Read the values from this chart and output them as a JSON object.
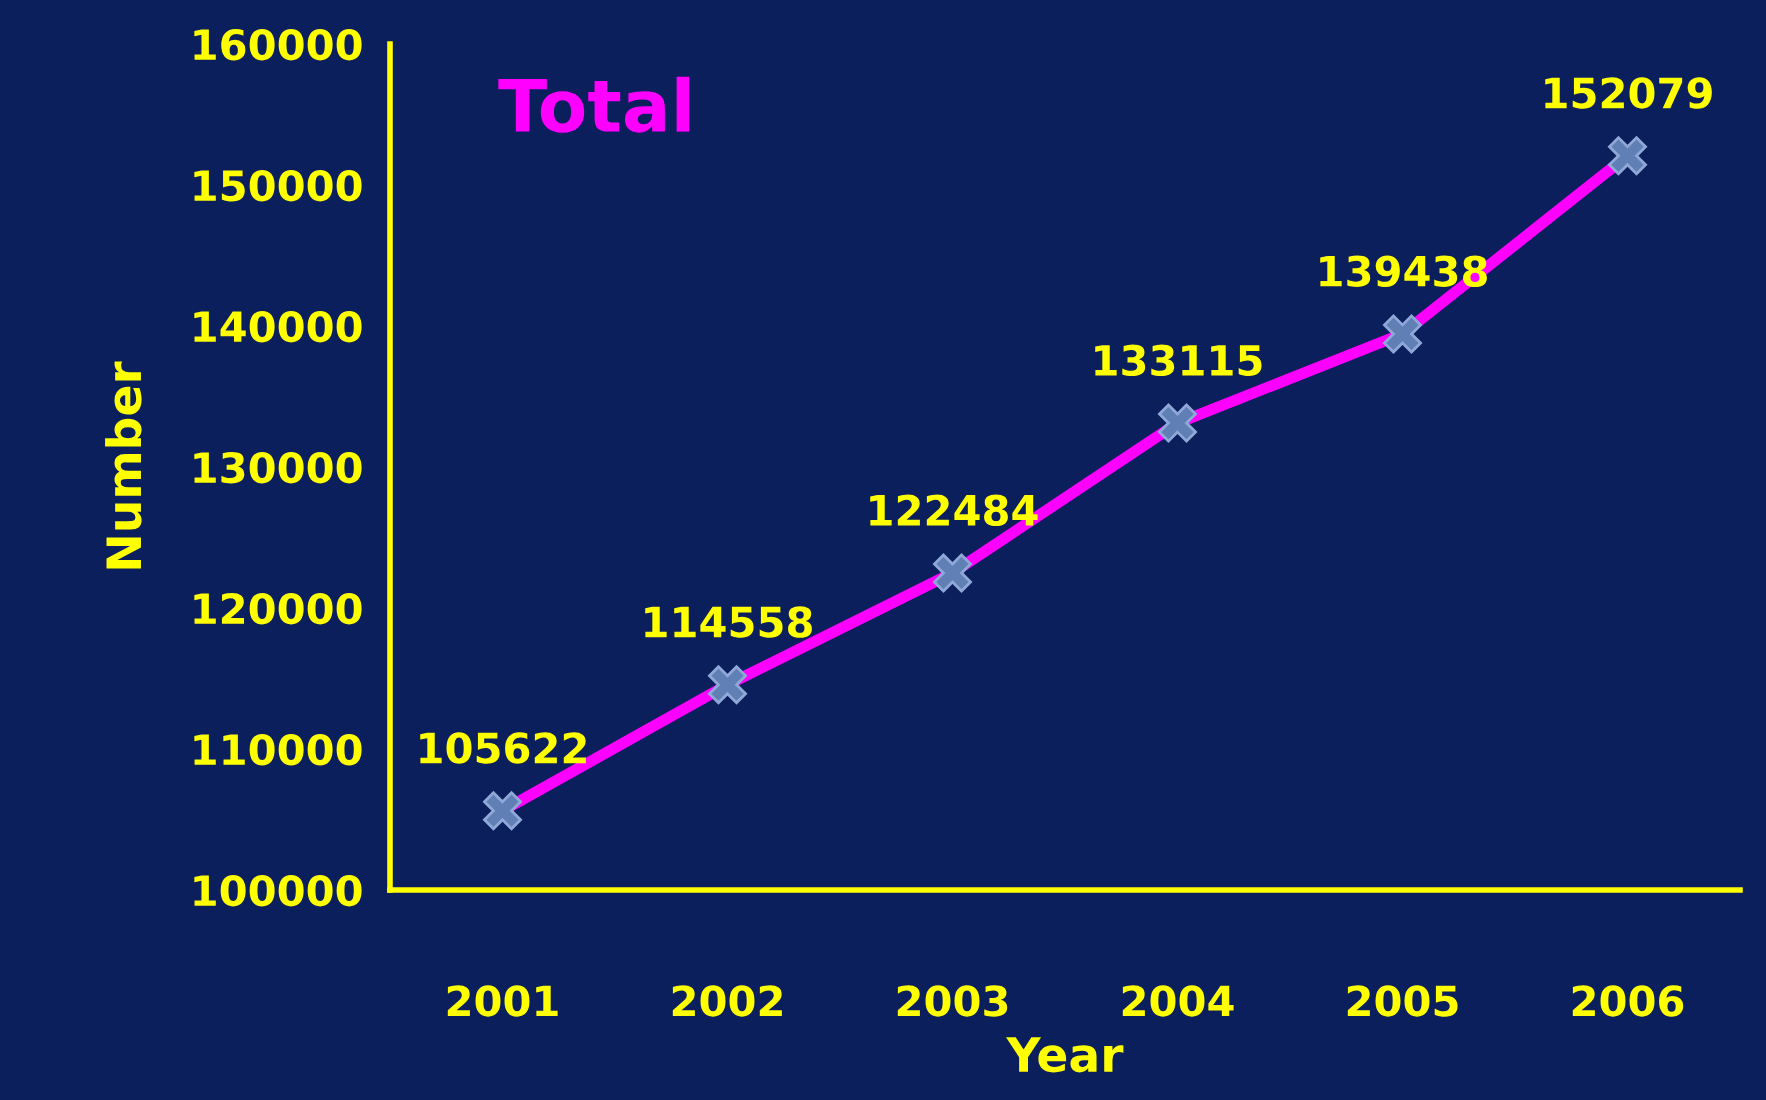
{
  "chart_data": {
    "type": "line",
    "title": "Total",
    "xlabel": "Year",
    "ylabel": "Number",
    "categories": [
      "2001",
      "2002",
      "2003",
      "2004",
      "2005",
      "2006"
    ],
    "series": [
      {
        "color": "#ff00ff",
        "values": [
          105622,
          114558,
          122484,
          133115,
          139438,
          152079
        ]
      }
    ],
    "ylim": [
      100000,
      160000
    ],
    "yticks": [
      100000,
      110000,
      120000,
      130000,
      140000,
      150000,
      160000
    ],
    "data_labels": true,
    "marker": "cross",
    "line_style": "solid",
    "grid": false,
    "legend": false
  }
}
